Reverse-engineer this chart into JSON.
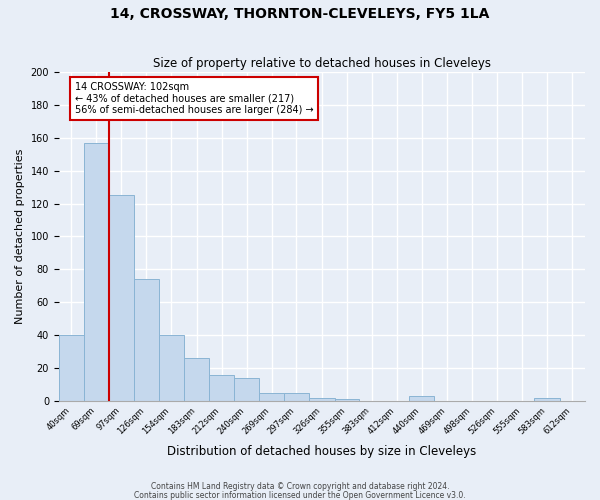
{
  "title": "14, CROSSWAY, THORNTON-CLEVELEYS, FY5 1LA",
  "subtitle": "Size of property relative to detached houses in Cleveleys",
  "xlabel": "Distribution of detached houses by size in Cleveleys",
  "ylabel": "Number of detached properties",
  "footnote1": "Contains HM Land Registry data © Crown copyright and database right 2024.",
  "footnote2": "Contains public sector information licensed under the Open Government Licence v3.0.",
  "bin_left_edges": [
    40,
    69,
    97,
    126,
    154,
    183,
    212,
    240,
    269,
    297,
    326,
    355,
    383,
    412,
    440,
    469,
    498,
    526,
    555,
    583,
    612
  ],
  "bin_widths": [
    29,
    28,
    29,
    28,
    29,
    29,
    28,
    29,
    28,
    29,
    29,
    28,
    29,
    28,
    29,
    29,
    28,
    29,
    28,
    29,
    29
  ],
  "bar_heights": [
    40,
    157,
    125,
    74,
    40,
    26,
    16,
    14,
    5,
    5,
    2,
    1,
    0,
    0,
    3,
    0,
    0,
    0,
    0,
    2,
    0
  ],
  "bin_labels": [
    "40sqm",
    "69sqm",
    "97sqm",
    "126sqm",
    "154sqm",
    "183sqm",
    "212sqm",
    "240sqm",
    "269sqm",
    "297sqm",
    "326sqm",
    "355sqm",
    "383sqm",
    "412sqm",
    "440sqm",
    "469sqm",
    "498sqm",
    "526sqm",
    "555sqm",
    "583sqm",
    "612sqm"
  ],
  "bar_color": "#c5d8ed",
  "bar_edge_color": "#8ab4d4",
  "background_color": "#e8eef7",
  "grid_color": "#ffffff",
  "vline_x": 97,
  "vline_color": "#cc0000",
  "annotation_text": "14 CROSSWAY: 102sqm\n← 43% of detached houses are smaller (217)\n56% of semi-detached houses are larger (284) →",
  "annotation_box_color": "#ffffff",
  "annotation_box_edge": "#cc0000",
  "ylim": [
    0,
    200
  ],
  "yticks": [
    0,
    20,
    40,
    60,
    80,
    100,
    120,
    140,
    160,
    180,
    200
  ]
}
